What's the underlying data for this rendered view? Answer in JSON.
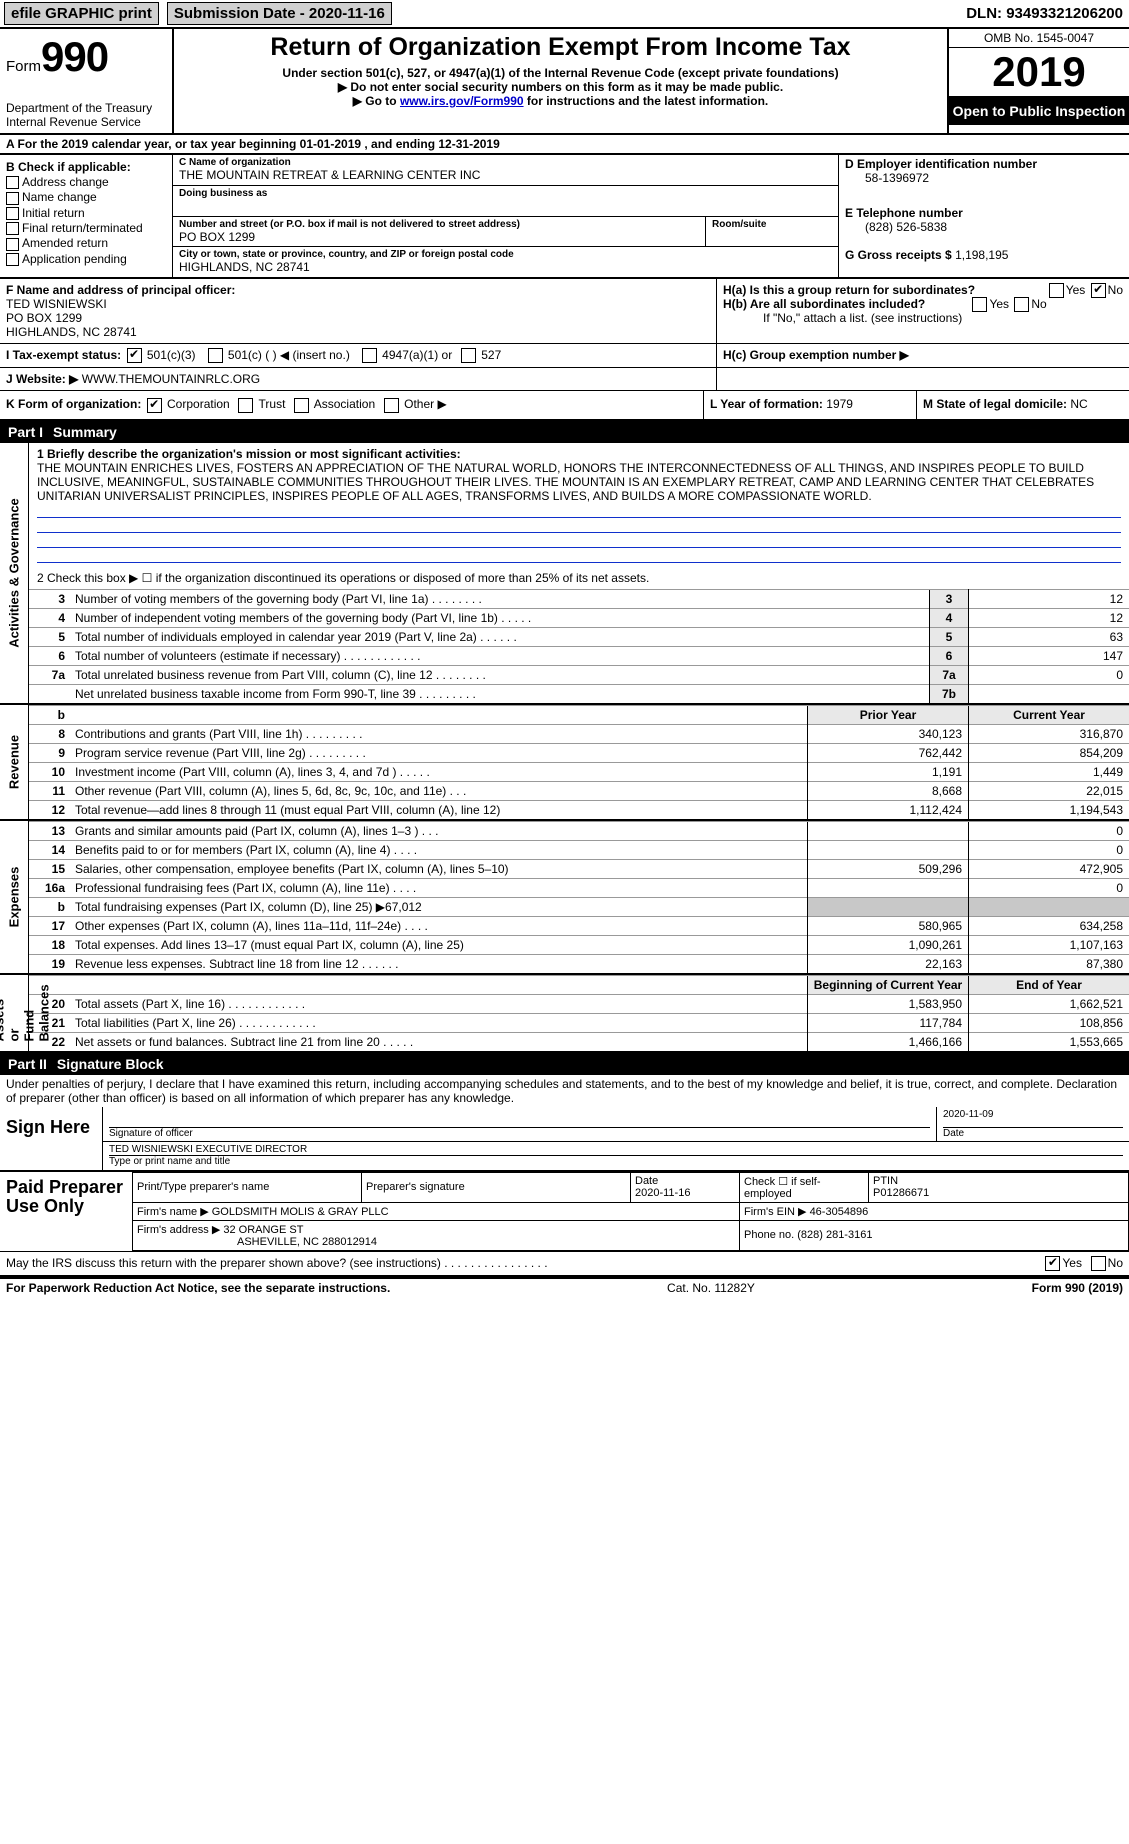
{
  "topbar": {
    "efile": "efile GRAPHIC print",
    "submission": "Submission Date - 2020-11-16",
    "dln": "DLN: 93493321206200"
  },
  "header": {
    "formWord": "Form",
    "formNum": "990",
    "dept": "Department of the Treasury\nInternal Revenue Service",
    "title": "Return of Organization Exempt From Income Tax",
    "sub1": "Under section 501(c), 527, or 4947(a)(1) of the Internal Revenue Code (except private foundations)",
    "sub2a": "▶ Do not enter social security numbers on this form as it may be made public.",
    "sub2b_pre": "▶ Go to ",
    "sub2b_link": "www.irs.gov/Form990",
    "sub2b_post": " for instructions and the latest information.",
    "omb": "OMB No. 1545-0047",
    "year": "2019",
    "otp": "Open to Public Inspection"
  },
  "a": {
    "text": "A For the 2019 calendar year, or tax year beginning 01-01-2019   , and ending 12-31-2019"
  },
  "b": {
    "hdr": "B Check if applicable:",
    "items": [
      "Address change",
      "Name change",
      "Initial return",
      "Final return/terminated",
      "Amended return",
      "Application pending"
    ]
  },
  "c": {
    "nameLbl": "C Name of organization",
    "name": "THE MOUNTAIN RETREAT & LEARNING CENTER INC",
    "dbaLbl": "Doing business as",
    "dba": "",
    "streetLbl": "Number and street (or P.O. box if mail is not delivered to street address)",
    "roomLbl": "Room/suite",
    "street": "PO BOX 1299",
    "cityLbl": "City or town, state or province, country, and ZIP or foreign postal code",
    "city": "HIGHLANDS, NC  28741"
  },
  "d": {
    "lbl": "D Employer identification number",
    "val": "58-1396972"
  },
  "e": {
    "lbl": "E Telephone number",
    "val": "(828) 526-5838"
  },
  "g": {
    "lbl": "G Gross receipts $",
    "val": "1,198,195"
  },
  "f": {
    "lbl": "F  Name and address of principal officer:",
    "name": "TED WISNIEWSKI",
    "street": "PO BOX 1299",
    "city": "HIGHLANDS, NC  28741"
  },
  "h": {
    "a": "H(a)  Is this a group return for subordinates?",
    "aYesNo": {
      "yes": "Yes",
      "no": "No",
      "checked": "no"
    },
    "b": "H(b)  Are all subordinates included?",
    "bYesNo": {
      "yes": "Yes",
      "no": "No"
    },
    "bNote": "If \"No,\" attach a list. (see instructions)",
    "c": "H(c)  Group exemption number ▶"
  },
  "i": {
    "lbl": "I  Tax-exempt status:",
    "opt1": "501(c)(3)",
    "opt2": "501(c) (   ) ◀ (insert no.)",
    "opt3": "4947(a)(1) or",
    "opt4": "527"
  },
  "j": {
    "lbl": "J  Website: ▶",
    "val": "WWW.THEMOUNTAINRLC.ORG"
  },
  "k": {
    "lbl": "K Form of organization:",
    "opts": [
      "Corporation",
      "Trust",
      "Association",
      "Other ▶"
    ],
    "checked": 0
  },
  "l": {
    "lbl": "L Year of formation:",
    "val": "1979"
  },
  "m": {
    "lbl": "M State of legal domicile:",
    "val": "NC"
  },
  "part1": {
    "num": "Part I",
    "title": "Summary"
  },
  "p1": {
    "l1": "1  Briefly describe the organization's mission or most significant activities:",
    "mission": "THE MOUNTAIN ENRICHES LIVES, FOSTERS AN APPRECIATION OF THE NATURAL WORLD, HONORS THE INTERCONNECTEDNESS OF ALL THINGS, AND INSPIRES PEOPLE TO BUILD INCLUSIVE, MEANINGFUL, SUSTAINABLE COMMUNITIES THROUGHOUT THEIR LIVES. THE MOUNTAIN IS AN EXEMPLARY RETREAT, CAMP AND LEARNING CENTER THAT CELEBRATES UNITARIAN UNIVERSALIST PRINCIPLES, INSPIRES PEOPLE OF ALL AGES, TRANSFORMS LIVES, AND BUILDS A MORE COMPASSIONATE WORLD.",
    "l2": "2   Check this box ▶ ☐ if the organization discontinued its operations or disposed of more than 25% of its net assets.",
    "rows": [
      {
        "n": "3",
        "t": "Number of voting members of the governing body (Part VI, line 1a)   .    .    .    .    .    .    .    .",
        "box": "3",
        "v": "12"
      },
      {
        "n": "4",
        "t": "Number of independent voting members of the governing body (Part VI, line 1b)    .    .    .    .    .",
        "box": "4",
        "v": "12"
      },
      {
        "n": "5",
        "t": "Total number of individuals employed in calendar year 2019 (Part V, line 2a)    .    .    .    .    .    .",
        "box": "5",
        "v": "63"
      },
      {
        "n": "6",
        "t": "Total number of volunteers (estimate if necessary)    .    .    .    .    .    .    .    .    .    .    .    .",
        "box": "6",
        "v": "147"
      },
      {
        "n": "7a",
        "t": "Total unrelated business revenue from Part VIII, column (C), line 12    .    .    .    .    .    .    .    .",
        "box": "7a",
        "v": "0"
      },
      {
        "n": "",
        "t": "Net unrelated business taxable income from Form 990-T, line 39    .    .    .    .    .    .    .    .    .",
        "box": "7b",
        "v": ""
      }
    ],
    "priorHdr": "Prior Year",
    "currHdr": "Current Year",
    "b": "b",
    "revenue": [
      {
        "n": "8",
        "t": "Contributions and grants (Part VIII, line 1h)    .    .    .    .    .    .    .    .    .",
        "p": "340,123",
        "c": "316,870"
      },
      {
        "n": "9",
        "t": "Program service revenue (Part VIII, line 2g)    .    .    .    .    .    .    .    .    .",
        "p": "762,442",
        "c": "854,209"
      },
      {
        "n": "10",
        "t": "Investment income (Part VIII, column (A), lines 3, 4, and 7d )    .    .    .    .    .",
        "p": "1,191",
        "c": "1,449"
      },
      {
        "n": "11",
        "t": "Other revenue (Part VIII, column (A), lines 5, 6d, 8c, 9c, 10c, and 11e)    .    .    .",
        "p": "8,668",
        "c": "22,015"
      },
      {
        "n": "12",
        "t": "Total revenue—add lines 8 through 11 (must equal Part VIII, column (A), line 12)",
        "p": "1,112,424",
        "c": "1,194,543"
      }
    ],
    "expenses": [
      {
        "n": "13",
        "t": "Grants and similar amounts paid (Part IX, column (A), lines 1–3 )    .    .    .",
        "p": "",
        "c": "0"
      },
      {
        "n": "14",
        "t": "Benefits paid to or for members (Part IX, column (A), line 4)    .    .    .    .",
        "p": "",
        "c": "0"
      },
      {
        "n": "15",
        "t": "Salaries, other compensation, employee benefits (Part IX, column (A), lines 5–10)",
        "p": "509,296",
        "c": "472,905"
      },
      {
        "n": "16a",
        "t": "Professional fundraising fees (Part IX, column (A), line 11e)    .    .    .    .",
        "p": "",
        "c": "0"
      },
      {
        "n": "b",
        "t": "Total fundraising expenses (Part IX, column (D), line 25) ▶67,012",
        "p": "GREY",
        "c": "GREY"
      },
      {
        "n": "17",
        "t": "Other expenses (Part IX, column (A), lines 11a–11d, 11f–24e)    .    .    .    .",
        "p": "580,965",
        "c": "634,258"
      },
      {
        "n": "18",
        "t": "Total expenses. Add lines 13–17 (must equal Part IX, column (A), line 25)",
        "p": "1,090,261",
        "c": "1,107,163"
      },
      {
        "n": "19",
        "t": "Revenue less expenses. Subtract line 18 from line 12    .    .    .    .    .    .",
        "p": "22,163",
        "c": "87,380"
      }
    ],
    "bocyHdr": "Beginning of Current Year",
    "eoyHdr": "End of Year",
    "net": [
      {
        "n": "20",
        "t": "Total assets (Part X, line 16)    .    .    .    .    .    .    .    .    .    .    .    .",
        "p": "1,583,950",
        "c": "1,662,521"
      },
      {
        "n": "21",
        "t": "Total liabilities (Part X, line 26)    .    .    .    .    .    .    .    .    .    .    .    .",
        "p": "117,784",
        "c": "108,856"
      },
      {
        "n": "22",
        "t": "Net assets or fund balances. Subtract line 21 from line 20    .    .    .    .    .",
        "p": "1,466,166",
        "c": "1,553,665"
      }
    ]
  },
  "sideLabels": {
    "ag": "Activities & Governance",
    "rev": "Revenue",
    "exp": "Expenses",
    "net": "Net Assets or\nFund Balances"
  },
  "part2": {
    "num": "Part II",
    "title": "Signature Block"
  },
  "sig": {
    "perjury": "Under penalties of perjury, I declare that I have examined this return, including accompanying schedules and statements, and to the best of my knowledge and belief, it is true, correct, and complete. Declaration of preparer (other than officer) is based on all information of which preparer has any knowledge.",
    "signHere": "Sign Here",
    "date": "2020-11-09",
    "sigOfficer": "Signature of officer",
    "dateLbl": "Date",
    "name": "TED WISNIEWSKI  EXECUTIVE DIRECTOR",
    "typeLbl": "Type or print name and title"
  },
  "paid": {
    "lbl": "Paid Preparer Use Only",
    "h1": "Print/Type preparer's name",
    "h2": "Preparer's signature",
    "h3": "Date",
    "h3v": "2020-11-16",
    "h4": "Check ☐ if self-employed",
    "h5": "PTIN",
    "h5v": "P01286671",
    "r2a": "Firm's name      ▶",
    "r2b": "GOLDSMITH MOLIS & GRAY PLLC",
    "r2c": "Firm's EIN ▶",
    "r2d": "46-3054896",
    "r3a": "Firm's address ▶",
    "r3b": "32 ORANGE ST",
    "r3b2": "ASHEVILLE, NC  288012914",
    "r3c": "Phone no.",
    "r3d": "(828) 281-3161"
  },
  "may": {
    "text": "May the IRS discuss this return with the preparer shown above? (see instructions)    .    .    .    .    .    .    .    .    .    .    .    .    .    .    .    .",
    "yes": "Yes",
    "no": "No"
  },
  "footer": {
    "l": "For Paperwork Reduction Act Notice, see the separate instructions.",
    "m": "Cat. No. 11282Y",
    "r": "Form 990 (2019)"
  },
  "colors": {
    "link": "#0000cc",
    "hdr": "#000000"
  }
}
